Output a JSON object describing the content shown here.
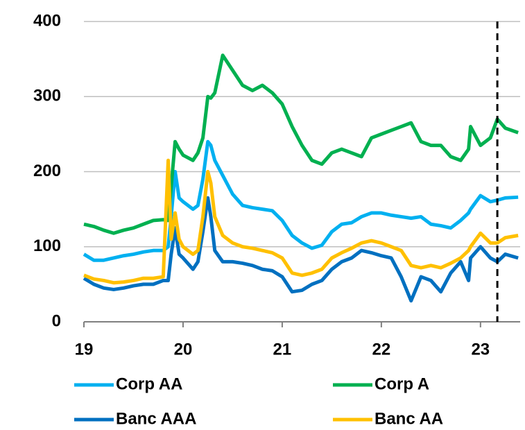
{
  "chart_data": {
    "type": "line",
    "x": [
      19.0,
      19.1,
      19.2,
      19.3,
      19.4,
      19.5,
      19.6,
      19.7,
      19.8,
      19.85,
      19.88,
      19.92,
      19.96,
      20.0,
      20.1,
      20.15,
      20.2,
      20.25,
      20.28,
      20.32,
      20.4,
      20.5,
      20.6,
      20.7,
      20.8,
      20.9,
      21.0,
      21.1,
      21.2,
      21.3,
      21.4,
      21.5,
      21.6,
      21.7,
      21.8,
      21.9,
      22.0,
      22.1,
      22.2,
      22.3,
      22.4,
      22.5,
      22.6,
      22.7,
      22.8,
      22.88,
      22.9,
      23.0,
      23.1,
      23.17,
      23.25,
      23.38
    ],
    "series": [
      {
        "name": "Corp AA",
        "color": "#00b0f0",
        "values": [
          90,
          82,
          82,
          85,
          88,
          90,
          93,
          95,
          95,
          100,
          140,
          200,
          165,
          160,
          150,
          155,
          190,
          240,
          235,
          215,
          195,
          170,
          155,
          152,
          150,
          148,
          135,
          115,
          105,
          98,
          102,
          120,
          130,
          132,
          140,
          145,
          145,
          142,
          140,
          138,
          140,
          130,
          128,
          125,
          135,
          145,
          150,
          168,
          160,
          162,
          165,
          166
        ]
      },
      {
        "name": "Corp A",
        "color": "#00b050",
        "values": [
          130,
          127,
          122,
          118,
          122,
          125,
          130,
          135,
          136,
          135,
          180,
          240,
          230,
          222,
          215,
          225,
          245,
          300,
          298,
          305,
          355,
          335,
          315,
          308,
          315,
          305,
          290,
          260,
          235,
          215,
          210,
          225,
          230,
          225,
          220,
          245,
          250,
          255,
          260,
          265,
          240,
          235,
          235,
          220,
          215,
          230,
          260,
          235,
          245,
          270,
          258,
          252
        ]
      },
      {
        "name": "Banc AAA",
        "color": "#0070c0",
        "values": [
          58,
          50,
          45,
          43,
          45,
          48,
          50,
          50,
          55,
          55,
          90,
          125,
          90,
          85,
          70,
          80,
          120,
          165,
          140,
          95,
          80,
          80,
          78,
          75,
          70,
          68,
          60,
          40,
          42,
          50,
          55,
          70,
          80,
          85,
          95,
          92,
          88,
          85,
          60,
          28,
          60,
          55,
          40,
          65,
          80,
          55,
          85,
          100,
          85,
          80,
          90,
          85
        ]
      },
      {
        "name": "Banc AA",
        "color": "#ffc000",
        "values": [
          62,
          57,
          55,
          52,
          53,
          55,
          58,
          58,
          60,
          215,
          110,
          145,
          110,
          100,
          90,
          95,
          140,
          200,
          185,
          140,
          115,
          105,
          100,
          98,
          95,
          92,
          85,
          65,
          62,
          65,
          70,
          85,
          92,
          98,
          105,
          108,
          105,
          100,
          95,
          75,
          72,
          75,
          72,
          78,
          85,
          95,
          100,
          118,
          105,
          105,
          112,
          115
        ]
      }
    ],
    "xlim": [
      19,
      23.4
    ],
    "xticks": [
      19,
      20,
      21,
      22,
      23
    ],
    "ylim": [
      0,
      400
    ],
    "yticks": [
      0,
      100,
      200,
      300,
      400
    ],
    "grid": true,
    "vline": 23.17
  }
}
